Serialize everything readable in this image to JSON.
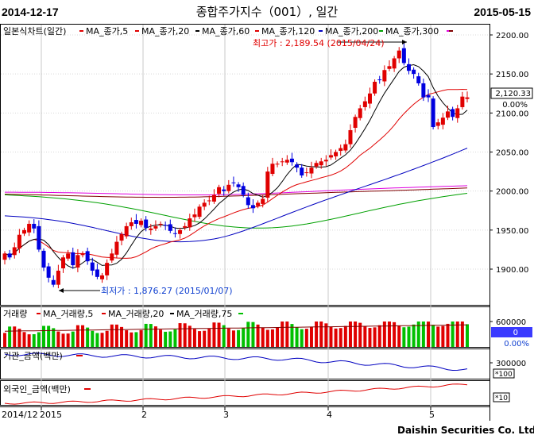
{
  "header": {
    "start_date": "2014-12-17",
    "title": "종합주가지수（001）, 일간",
    "end_date": "2015-05-15"
  },
  "legend_price": {
    "main": "일본식차트(일간)",
    "items": [
      {
        "label": "MA_종가,5",
        "color": "#e00000"
      },
      {
        "label": "MA_종가,20",
        "color": "#000000"
      },
      {
        "label": "MA_종가,60",
        "color": "#e00000"
      },
      {
        "label": "MA_종가,120",
        "color": "#0000c0"
      },
      {
        "label": "MA_종가,200",
        "color": "#00a000"
      },
      {
        "label": "MA_종가,300",
        "color": "#e000e0"
      }
    ],
    "last_color": "#800000"
  },
  "legend_volume": {
    "main": "거래량",
    "items": [
      {
        "label": "MA_거래량,5",
        "color": "#e00000"
      },
      {
        "label": "MA_거래량,20",
        "color": "#000000"
      },
      {
        "label": "MA_거래량,75",
        "color": "#00c000"
      }
    ]
  },
  "legend_inst": {
    "label": "기관_금액(백만)",
    "color": "#e00000"
  },
  "legend_foreign": {
    "label": "외국인_금액(백만)",
    "color": "#e00000"
  },
  "annotations": {
    "high": "최고가 : 2,189.54 (2015/04/24)",
    "low": "최저가 : 1,876.27 (2015/01/07)"
  },
  "price_axis": {
    "ticks": [
      "2200.00",
      "2150.00",
      "2100.00",
      "2050.00",
      "2000.00",
      "1950.00",
      "1900.00"
    ],
    "current_value": "2,120.33",
    "current_change": "0.00%"
  },
  "volume_axis": {
    "tick": "600000",
    "current_value": "0",
    "current_change": "0.00%"
  },
  "inst_axis": {
    "tick": "300000",
    "scale": "*100"
  },
  "foreign_axis": {
    "scale": "*10"
  },
  "x_axis": {
    "labels": [
      "2014/12",
      "2015",
      "2",
      "3",
      "4",
      "5"
    ]
  },
  "footer": "Daishin Securities Co. Ltd.",
  "chart_data": {
    "type": "candlestick",
    "title": "종합주가지수（001）, 일간",
    "dates": [
      "2014-12-17",
      "2015-05-15"
    ],
    "y_range": [
      1855,
      2210
    ],
    "high": {
      "value": 2189.54,
      "date": "2015-04-24"
    },
    "low": {
      "value": 1876.27,
      "date": "2015-01-07"
    },
    "last_close": 2120.33,
    "closes": [
      1920,
      1915,
      1928,
      1944,
      1950,
      1958,
      1952,
      1925,
      1902,
      1889,
      1880,
      1898,
      1915,
      1920,
      1905,
      1918,
      1920,
      1910,
      1898,
      1890,
      1892,
      1908,
      1920,
      1935,
      1945,
      1955,
      1960,
      1958,
      1962,
      1953,
      1952,
      1955,
      1958,
      1956,
      1949,
      1945,
      1950,
      1955,
      1965,
      1970,
      1980,
      1985,
      1988,
      1995,
      2005,
      2000,
      2008,
      2010,
      2005,
      1995,
      1982,
      1978,
      1985,
      1990,
      2025,
      2035,
      2035,
      2038,
      2040,
      2037,
      2030,
      2020,
      2024,
      2030,
      2036,
      2038,
      2040,
      2046,
      2050,
      2055,
      2060,
      2078,
      2095,
      2106,
      2115,
      2125,
      2140,
      2142,
      2155,
      2160,
      2170,
      2180,
      2164,
      2154,
      2150,
      2138,
      2120,
      2120,
      2082,
      2088,
      2094,
      2102,
      2095,
      2106,
      2121,
      2120
    ],
    "volume_max": 600000,
    "series": [
      {
        "name": "MA_종가,5"
      },
      {
        "name": "MA_종가,20"
      },
      {
        "name": "MA_종가,60"
      },
      {
        "name": "MA_종가,120"
      },
      {
        "name": "MA_종가,200"
      },
      {
        "name": "MA_종가,300"
      },
      {
        "name": "거래량"
      },
      {
        "name": "MA_거래량,5"
      },
      {
        "name": "MA_거래량,20"
      },
      {
        "name": "MA_거래량,75"
      },
      {
        "name": "기관_금액(백만)"
      },
      {
        "name": "외국인_금액(백만)"
      }
    ]
  }
}
